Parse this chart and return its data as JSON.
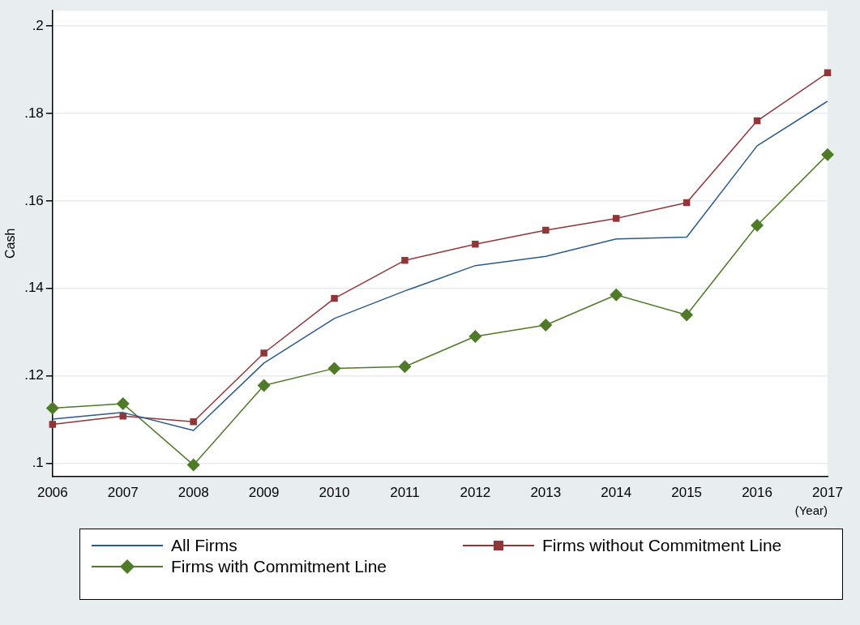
{
  "chart_data": {
    "type": "line",
    "ylabel": "Cash",
    "xlabel": "(Year)",
    "categories": [
      "2006",
      "2007",
      "2008",
      "2009",
      "2010",
      "2011",
      "2012",
      "2013",
      "2014",
      "2015",
      "2016",
      "2017"
    ],
    "series": [
      {
        "name": "All Firms",
        "color": "#2b5a8a",
        "marker": "none",
        "values": [
          0.1101,
          0.1116,
          0.1075,
          0.1229,
          0.1331,
          0.1394,
          0.1452,
          0.1473,
          0.1513,
          0.1517,
          0.1726,
          0.1828
        ]
      },
      {
        "name": "Firms without Commitment Line",
        "color": "#913539",
        "marker": "square",
        "values": [
          0.1089,
          0.1108,
          0.1095,
          0.1252,
          0.1377,
          0.1464,
          0.1501,
          0.1533,
          0.156,
          0.1596,
          0.1783,
          0.1893
        ]
      },
      {
        "name": "Firms with Commitment Line",
        "color": "#4f7a28",
        "marker": "diamond",
        "values": [
          0.1126,
          0.1136,
          0.0996,
          0.1178,
          0.1217,
          0.1221,
          0.129,
          0.1316,
          0.1385,
          0.1339,
          0.1544,
          0.1706
        ]
      }
    ],
    "ylim": [
      0.097,
      0.2035
    ],
    "yticks": [
      {
        "value": 0.1,
        "label": ".1"
      },
      {
        "value": 0.12,
        "label": ".12"
      },
      {
        "value": 0.14,
        "label": ".14"
      },
      {
        "value": 0.16,
        "label": ".16"
      },
      {
        "value": 0.18,
        "label": ".18"
      },
      {
        "value": 0.2,
        "label": ".2"
      }
    ],
    "grid": "y",
    "legend": "bottom",
    "line_style": "solid"
  }
}
